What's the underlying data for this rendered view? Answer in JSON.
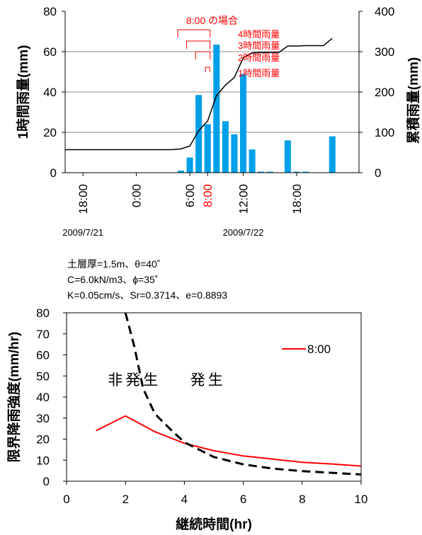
{
  "chart_data": [
    {
      "type": "bar+line",
      "title": "",
      "ylabel_left": "1時間雨量(mm)",
      "ylabel_right": "累積雨量(mm)",
      "left_ticks": [
        0,
        20,
        40,
        60,
        80
      ],
      "right_ticks": [
        0,
        100,
        200,
        300,
        400
      ],
      "ylim_left": [
        0,
        80
      ],
      "ylim_right": [
        0,
        400
      ],
      "xlim_hours": [
        -2,
        31
      ],
      "time_ticks": [
        {
          "hour": 0,
          "label": "18:00",
          "highlight": false
        },
        {
          "hour": 6,
          "label": "0:00",
          "highlight": false
        },
        {
          "hour": 12,
          "label": "6:00",
          "highlight": false
        },
        {
          "hour": 14,
          "label": "8:00",
          "highlight": true
        },
        {
          "hour": 18,
          "label": "12:00",
          "highlight": false
        },
        {
          "hour": 24,
          "label": "18:00",
          "highlight": false
        }
      ],
      "date_labels": [
        {
          "hour": 0,
          "label": "2009/7/21"
        },
        {
          "hour": 18,
          "label": "2009/7/22"
        }
      ],
      "hourly_rainfall": {
        "name": "1時間雨量",
        "color": "#00A0E9",
        "x": [
          11,
          12,
          13,
          14,
          15,
          16,
          17,
          18,
          19,
          20,
          21,
          23,
          24,
          25,
          28
        ],
        "values": [
          1,
          7.5,
          38.5,
          24,
          63.5,
          25.5,
          19,
          49,
          11.5,
          0.5,
          0.5,
          16,
          0.5,
          0.5,
          18
        ]
      },
      "cumulative_rainfall": {
        "name": "累積雨量",
        "color": "#000000",
        "x": [
          -2,
          10,
          11,
          12,
          13,
          14,
          15,
          16,
          17,
          18,
          19,
          20,
          21,
          22,
          23,
          24,
          25,
          26,
          27,
          28
        ],
        "values": [
          57,
          57,
          59,
          66,
          104,
          128,
          191,
          217,
          236,
          285,
          297,
          298,
          298,
          298,
          314,
          314,
          315,
          315,
          315,
          333
        ]
      },
      "annotation": {
        "title": "8:00 の場合",
        "color": "#FF0000",
        "brackets": [
          {
            "label": "4時間雨量",
            "start_hour": 11,
            "end_hour": 14
          },
          {
            "label": "3時間雨量",
            "start_hour": 12,
            "end_hour": 14
          },
          {
            "label": "2時間雨量",
            "start_hour": 13,
            "end_hour": 14
          },
          {
            "label": "1時間雨量",
            "start_hour": 14,
            "end_hour": 14
          }
        ]
      }
    },
    {
      "type": "line",
      "title": "",
      "xlabel": "継続時間(hr)",
      "ylabel": "限界降雨強度(mm/hr)",
      "xlim": [
        0,
        10
      ],
      "ylim": [
        0,
        80
      ],
      "x_ticks": [
        0,
        2,
        4,
        6,
        8,
        10
      ],
      "y_ticks": [
        0,
        10,
        20,
        30,
        40,
        50,
        60,
        70,
        80
      ],
      "series": [
        {
          "name": "8:00",
          "color": "#FF0000",
          "style": "solid",
          "x": [
            1,
            2,
            3,
            4,
            5,
            6,
            7,
            8,
            9,
            10
          ],
          "values": [
            24,
            31,
            23.5,
            18,
            14.5,
            12,
            10.5,
            9,
            8.2,
            7.2
          ]
        },
        {
          "name": "",
          "color": "#000000",
          "style": "dashed",
          "x": [
            2,
            2.3,
            2.6,
            3,
            3.5,
            4,
            5,
            6,
            7,
            8,
            9,
            10
          ],
          "values": [
            80,
            64,
            44,
            32,
            25,
            18.5,
            11.5,
            8,
            6,
            4.8,
            4,
            3.2
          ]
        }
      ],
      "region_labels": [
        {
          "label": "非発生",
          "x": 1.4,
          "y": 48
        },
        {
          "label": "発生",
          "x": 4.2,
          "y": 48
        }
      ],
      "conditions": [
        "土層厚=1.5m、θ=40˚",
        "C=6.0kN/m3、ϕ=35˚",
        "K=0.05cm/s、Sr=0.3714、e=0.8893"
      ],
      "legend_position": "top-right"
    }
  ]
}
